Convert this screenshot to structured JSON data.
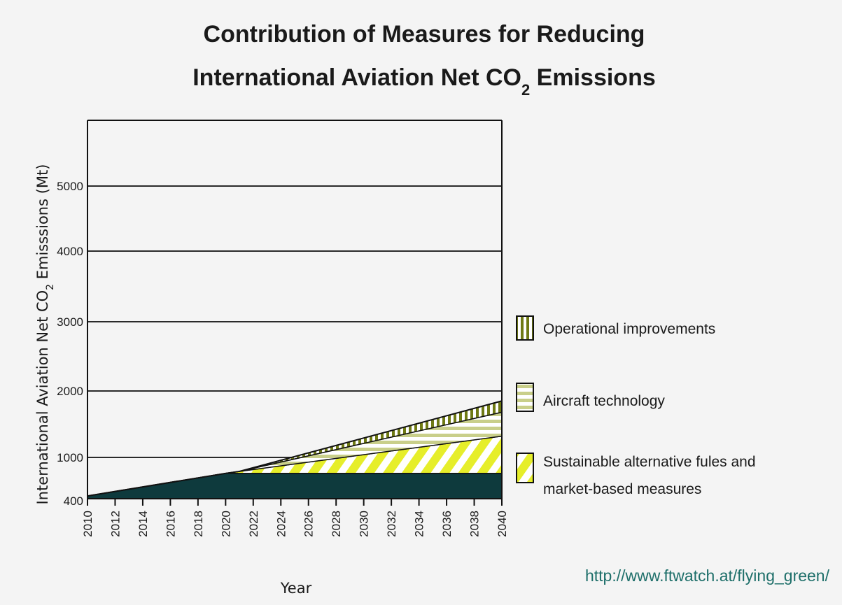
{
  "chart_data": {
    "type": "area",
    "title_line1": "Contribution of Measures for Reducing",
    "title_line2": "International Aviation Net CO",
    "title_line2_sub": "2",
    "title_line2_end": " Emissions",
    "ylabel": "International Aviation Net CO",
    "ylabel_sub": "2",
    "ylabel_end": " Emisssions (Mt)",
    "xlabel": "Year",
    "x_ticks": [
      "2010",
      "2012",
      "2014",
      "2016",
      "2018",
      "2020",
      "2022",
      "2024",
      "2026",
      "2028",
      "2030",
      "2032",
      "2034",
      "2036",
      "2038",
      "2040"
    ],
    "y_ticks": [
      400,
      1000,
      2000,
      3000,
      4000,
      5000
    ],
    "ylim": [
      350,
      6000
    ],
    "xlim": [
      2010,
      2040
    ],
    "grid": true,
    "x": [
      2010,
      2020,
      2021,
      2040
    ],
    "series": [
      {
        "name": "baseline",
        "values": [
          420,
          760,
          760,
          760
        ]
      },
      {
        "name": "Sustainable alternative fules and market-based measures",
        "values": [
          420,
          760,
          790,
          1320
        ]
      },
      {
        "name": "Aircraft technology",
        "values": [
          420,
          760,
          790,
          1680
        ]
      },
      {
        "name": "Operational improvements",
        "values": [
          420,
          760,
          790,
          1850
        ]
      }
    ],
    "legend": [
      {
        "label": "Operational improvements",
        "pattern": "vertical-stripes"
      },
      {
        "label": "Aircraft technology",
        "pattern": "horizontal-stripes"
      },
      {
        "label_line1": "Sustainable alternative fules and",
        "label_line2": "market-based measures",
        "pattern": "diagonal-stripes"
      }
    ],
    "legend_placement": "right"
  },
  "source": "http://www.ftwatch.at/flying_green/",
  "colors": {
    "baseline": "#0e3a3d",
    "stripe_green": "#6f7a14",
    "stripe_yellow": "#e6ee2a",
    "stripe_light": "#d8dc9a",
    "grid": "#2a2a2a",
    "source": "#1e6f6a"
  }
}
